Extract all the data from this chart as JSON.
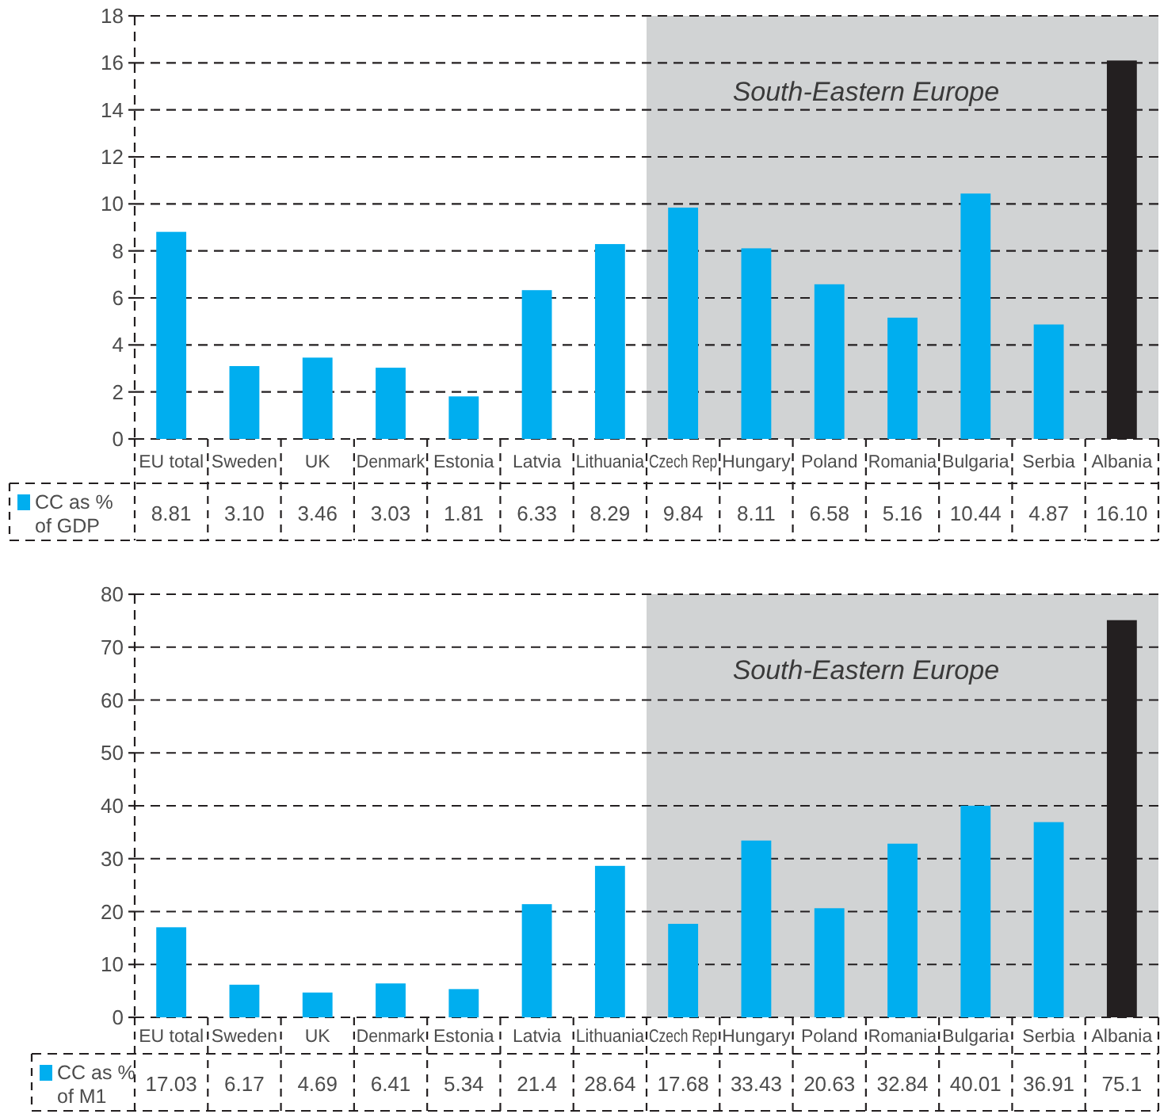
{
  "chart_data": [
    {
      "type": "bar",
      "categories": [
        "EU total",
        "Sweden",
        "UK",
        "Denmark",
        "Estonia",
        "Latvia",
        "Lithuania",
        "Czech Rep",
        "Hungary",
        "Poland",
        "Romania",
        "Bulgaria",
        "Serbia",
        "Albania"
      ],
      "series": [
        {
          "name": "CC as % of GDP",
          "color": "#00aeef",
          "colors": [
            "#00aeef",
            "#00aeef",
            "#00aeef",
            "#00aeef",
            "#00aeef",
            "#00aeef",
            "#00aeef",
            "#00aeef",
            "#00aeef",
            "#00aeef",
            "#00aeef",
            "#00aeef",
            "#00aeef",
            "#231f20"
          ],
          "values": [
            8.81,
            3.1,
            3.46,
            3.03,
            1.81,
            6.33,
            8.29,
            9.84,
            8.11,
            6.58,
            5.16,
            10.44,
            4.87,
            16.1
          ],
          "value_labels": [
            "8.81",
            "3.10",
            "3.46",
            "3.03",
            "1.81",
            "6.33",
            "8.29",
            "9.84",
            "8.11",
            "6.58",
            "5.16",
            "10.44",
            "4.87",
            "16.10"
          ]
        }
      ],
      "ylim": [
        0,
        18
      ],
      "yticks": [
        0,
        2,
        4,
        6,
        8,
        10,
        12,
        14,
        16,
        18
      ],
      "grid": "y",
      "legend": "bottom left",
      "bands": [
        {
          "axis": "x",
          "from": "Czech Rep",
          "to": "Albania",
          "label": "South-Eastern Europe",
          "color": "#d1d3d4"
        }
      ]
    },
    {
      "type": "bar",
      "categories": [
        "EU total",
        "Sweden",
        "UK",
        "Denmark",
        "Estonia",
        "Latvia",
        "Lithuania",
        "Czech Rep",
        "Hungary",
        "Poland",
        "Romania",
        "Bulgaria",
        "Serbia",
        "Albania"
      ],
      "series": [
        {
          "name": "CC as % of M1",
          "color": "#00aeef",
          "colors": [
            "#00aeef",
            "#00aeef",
            "#00aeef",
            "#00aeef",
            "#00aeef",
            "#00aeef",
            "#00aeef",
            "#00aeef",
            "#00aeef",
            "#00aeef",
            "#00aeef",
            "#00aeef",
            "#00aeef",
            "#231f20"
          ],
          "values": [
            17.03,
            6.17,
            4.69,
            6.41,
            5.34,
            21.4,
            28.64,
            17.68,
            33.43,
            20.63,
            32.84,
            40.01,
            36.91,
            75.1
          ],
          "value_labels": [
            "17.03",
            "6.17",
            "4.69",
            "6.41",
            "5.34",
            "21.4",
            "28.64",
            "17.68",
            "33.43",
            "20.63",
            "32.84",
            "40.01",
            "36.91",
            "75.1"
          ]
        }
      ],
      "ylim": [
        0,
        80
      ],
      "yticks": [
        0,
        10,
        20,
        30,
        40,
        50,
        60,
        70,
        80
      ],
      "grid": "y",
      "legend": "bottom left",
      "bands": [
        {
          "axis": "x",
          "from": "Czech Rep",
          "to": "Albania",
          "label": "South-Eastern Europe",
          "color": "#d1d3d4"
        }
      ]
    }
  ]
}
